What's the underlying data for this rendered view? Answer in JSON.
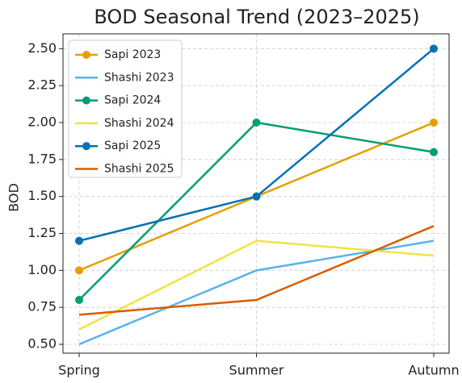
{
  "chart_data": {
    "type": "line",
    "title": "BOD Seasonal Trend (2023–2025)",
    "y_label": "BOD",
    "categories": [
      "Spring",
      "Summer",
      "Autumn"
    ],
    "series": [
      {
        "name": "Sapi 2023",
        "color": "#E69F00",
        "marker": true,
        "values": [
          1.0,
          1.5,
          2.0
        ]
      },
      {
        "name": "Shashi 2023",
        "color": "#56B4E9",
        "marker": false,
        "values": [
          0.5,
          1.0,
          1.2
        ]
      },
      {
        "name": "Sapi 2024",
        "color": "#009E73",
        "marker": true,
        "values": [
          0.8,
          2.0,
          1.8
        ]
      },
      {
        "name": "Shashi 2024",
        "color": "#F0E442",
        "marker": false,
        "values": [
          0.6,
          1.2,
          1.1
        ]
      },
      {
        "name": "Sapi 2025",
        "color": "#0072B2",
        "marker": true,
        "values": [
          1.2,
          1.5,
          2.5
        ]
      },
      {
        "name": "Shashi 2025",
        "color": "#D55E00",
        "marker": false,
        "values": [
          0.7,
          0.8,
          1.3
        ]
      }
    ],
    "ylim": [
      0.44,
      2.6
    ],
    "yticks": [
      {
        "value": 0.5,
        "label": "0.50"
      },
      0.75,
      {
        "value": 1.0,
        "label": "1.00"
      },
      1.25,
      {
        "value": 1.5,
        "label": "1.50"
      },
      1.75,
      {
        "value": 2.0,
        "label": "2.00"
      },
      2.25,
      {
        "value": 2.5,
        "label": "2.50"
      }
    ],
    "grid": true,
    "legend": "upper left"
  }
}
